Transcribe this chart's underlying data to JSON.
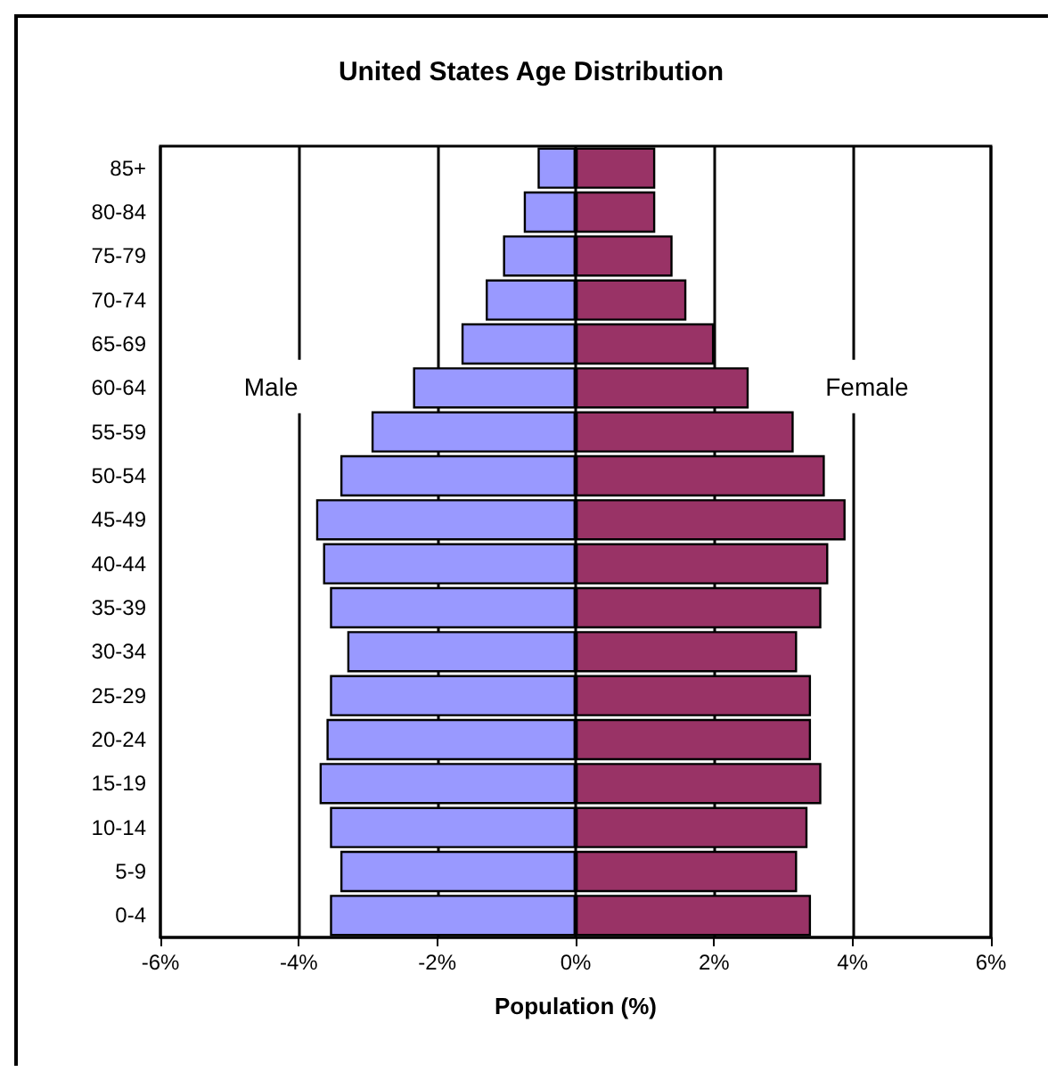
{
  "chart_data": {
    "type": "bar",
    "orientation": "horizontal",
    "stacked": true,
    "title": "United States Age Distribution",
    "xlabel": "Population (%)",
    "categories": [
      "85+",
      "80-84",
      "75-79",
      "70-74",
      "65-69",
      "60-64",
      "55-59",
      "50-54",
      "45-49",
      "40-44",
      "35-39",
      "30-34",
      "25-29",
      "20-24",
      "15-19",
      "10-14",
      "5-9",
      "0-4"
    ],
    "series": [
      {
        "name": "Male",
        "color": "#9999ff",
        "values": [
          -0.55,
          -0.75,
          -1.05,
          -1.3,
          -1.65,
          -2.35,
          -2.95,
          -3.4,
          -3.75,
          -3.65,
          -3.55,
          -3.3,
          -3.55,
          -3.6,
          -3.7,
          -3.55,
          -3.4,
          -3.55
        ]
      },
      {
        "name": "Female",
        "color": "#993366",
        "values": [
          1.15,
          1.15,
          1.4,
          1.6,
          2.0,
          2.5,
          3.15,
          3.6,
          3.9,
          3.65,
          3.55,
          3.2,
          3.4,
          3.4,
          3.55,
          3.35,
          3.2,
          3.4
        ]
      }
    ],
    "xlim": [
      -6,
      6
    ],
    "xticks": [
      {
        "value": -6,
        "label": "-6%"
      },
      {
        "value": -4,
        "label": "-4%"
      },
      {
        "value": -2,
        "label": "-2%"
      },
      {
        "value": 0,
        "label": "0%"
      },
      {
        "value": 2,
        "label": "2%"
      },
      {
        "value": 4,
        "label": "4%"
      },
      {
        "value": 6,
        "label": "6%"
      }
    ],
    "grid": "x",
    "legend": false
  }
}
